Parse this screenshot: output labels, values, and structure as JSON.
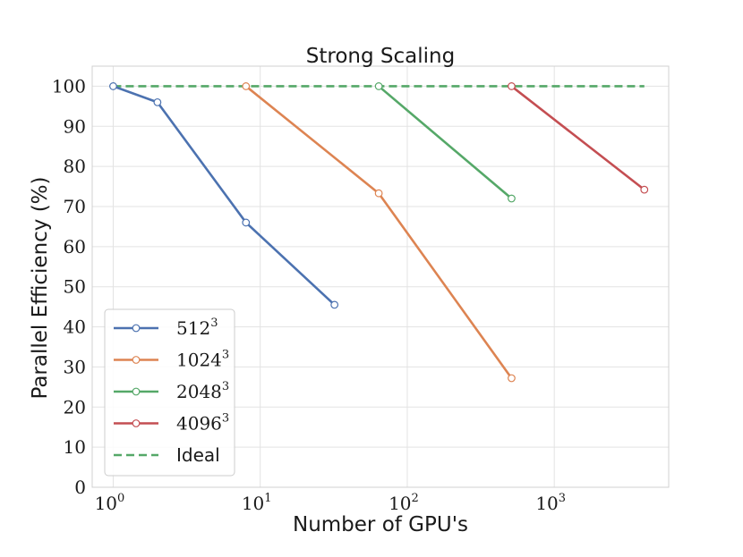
{
  "chart_data": {
    "type": "line",
    "title": "Strong Scaling",
    "xlabel": "Number of GPU's",
    "ylabel": "Parallel Efficiency (%)",
    "xscale": "log",
    "xlim": [
      0.72,
      6000
    ],
    "ylim": [
      0,
      105
    ],
    "grid": true,
    "legend_position": "lower-left",
    "x_ticks": [
      {
        "value": 1,
        "base": "10",
        "exp": "0"
      },
      {
        "value": 10,
        "base": "10",
        "exp": "1"
      },
      {
        "value": 100,
        "base": "10",
        "exp": "2"
      },
      {
        "value": 1000,
        "base": "10",
        "exp": "3"
      }
    ],
    "y_ticks": [
      0,
      10,
      20,
      30,
      40,
      50,
      60,
      70,
      80,
      90,
      100
    ],
    "series": [
      {
        "name": "512",
        "sup": "3",
        "color": "#4c72b0",
        "dashed": false,
        "x": [
          1,
          2,
          8,
          32
        ],
        "y": [
          100,
          96,
          66,
          45.5
        ]
      },
      {
        "name": "1024",
        "sup": "3",
        "color": "#dd8452",
        "dashed": false,
        "x": [
          8,
          64,
          512
        ],
        "y": [
          100,
          73.3,
          27.2
        ]
      },
      {
        "name": "2048",
        "sup": "3",
        "color": "#55a868",
        "dashed": false,
        "x": [
          64,
          512
        ],
        "y": [
          100,
          72
        ]
      },
      {
        "name": "4096",
        "sup": "3",
        "color": "#c44e52",
        "dashed": false,
        "x": [
          512,
          4096
        ],
        "y": [
          100,
          74.2
        ]
      },
      {
        "name": "Ideal",
        "sup": "",
        "color": "#55a868",
        "dashed": true,
        "x": [
          1,
          4096
        ],
        "y": [
          100,
          100
        ]
      }
    ]
  }
}
